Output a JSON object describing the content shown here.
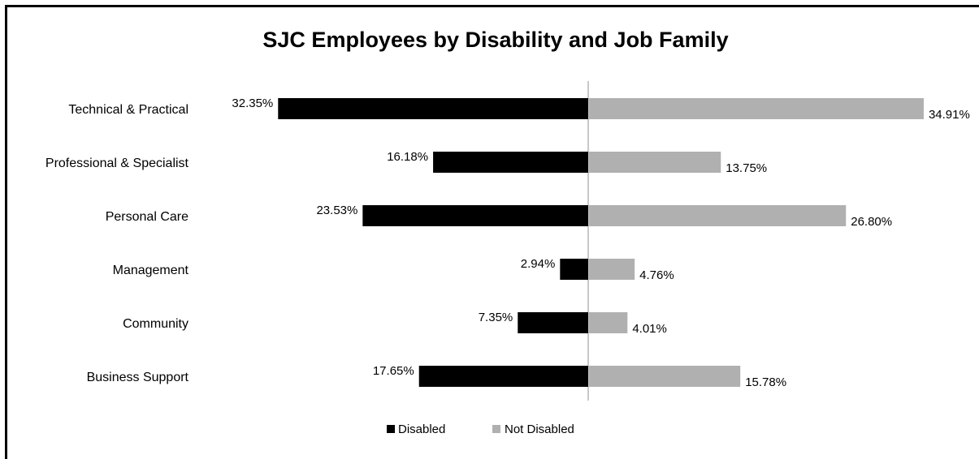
{
  "chart_data": {
    "type": "bar",
    "orientation": "horizontal-diverging",
    "title": "SJC Employees by Disability and Job Family",
    "categories": [
      "Technical & Practical",
      "Professional & Specialist",
      "Personal Care",
      "Management",
      "Community",
      "Business Support"
    ],
    "series": [
      {
        "name": "Disabled",
        "values": [
          32.35,
          16.18,
          23.53,
          2.94,
          7.35,
          17.65
        ],
        "labels": [
          "32.35%",
          "16.18%",
          "23.53%",
          "2.94%",
          "7.35%",
          "17.65%"
        ],
        "color": "#000000",
        "direction": "left"
      },
      {
        "name": "Not Disabled",
        "values": [
          34.91,
          13.75,
          26.8,
          4.76,
          4.01,
          15.78
        ],
        "labels": [
          "34.91%",
          "13.75%",
          "26.80%",
          "4.76%",
          "4.01%",
          "15.78%"
        ],
        "color": "#b0b0b0",
        "direction": "right"
      }
    ],
    "xlim": [
      -35,
      35
    ],
    "grid": false,
    "legend": "bottom"
  }
}
